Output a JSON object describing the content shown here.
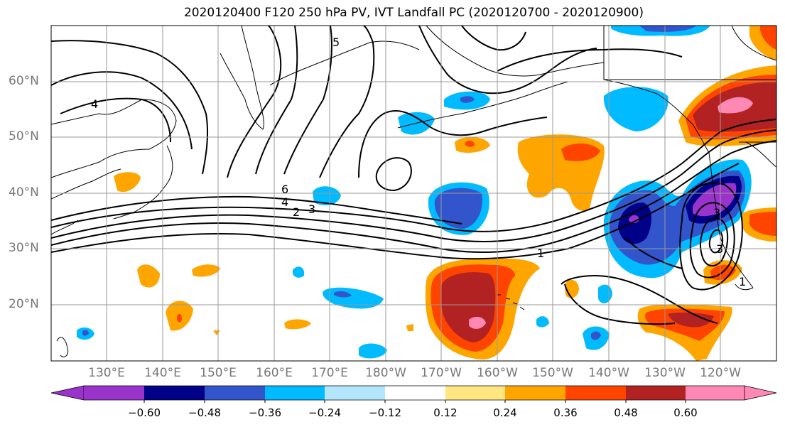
{
  "title": "2020120400 F120 250 hPa PV, IVT Landfall PC (2020120700 - 2020120900)",
  "lat_labels": [
    "60°N",
    "50°N",
    "40°N",
    "30°N",
    "20°N"
  ],
  "lon_labels": [
    "130°E",
    "140°E",
    "150°E",
    "160°E",
    "170°E",
    "180°W",
    "170°W",
    "160°W",
    "150°W",
    "140°W",
    "130°W",
    "120°W"
  ],
  "contour_labels": [
    "4",
    "5",
    "6",
    "4",
    "2",
    "3",
    "1",
    "1",
    "3",
    "3"
  ],
  "colorbar": {
    "ticks": [
      "−0.60",
      "−0.48",
      "−0.36",
      "−0.24",
      "−0.12",
      "0.12",
      "0.24",
      "0.36",
      "0.48",
      "0.60"
    ],
    "colors": [
      "#9933cc",
      "#000088",
      "#3355cc",
      "#00bbff",
      "#b3e5fc",
      "#ffffff",
      "#ffe680",
      "#ffa500",
      "#ff4400",
      "#b22222",
      "#ff88b4"
    ]
  }
}
